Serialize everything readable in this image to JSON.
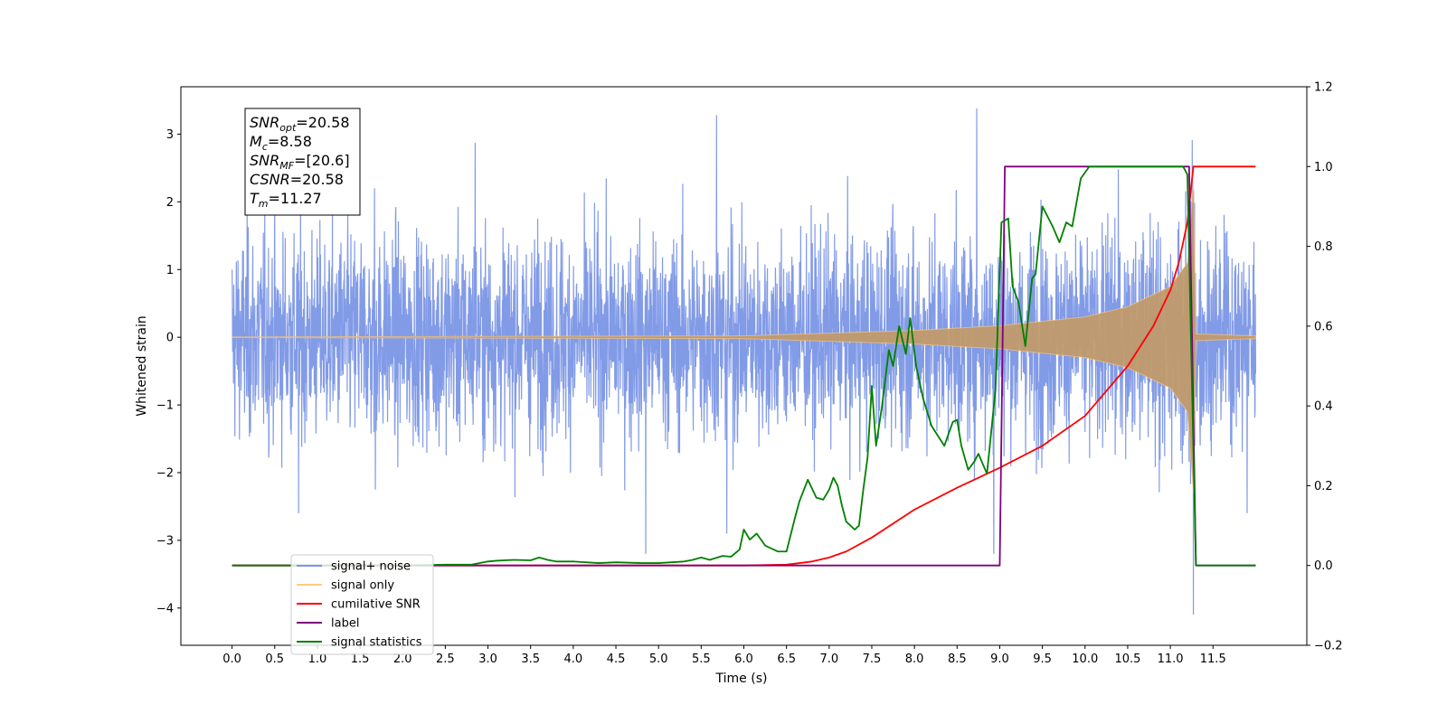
{
  "chart_data": {
    "type": "line",
    "xlabel": "Time (s)",
    "ylabel": "Whitened strain",
    "xlim": [
      -0.6,
      12.6
    ],
    "ylim_left": [
      -4.55,
      3.7
    ],
    "ylim_right": [
      -0.2,
      1.2
    ],
    "x_ticks": [
      0.0,
      0.5,
      1.0,
      1.5,
      2.0,
      2.5,
      3.0,
      3.5,
      4.0,
      4.5,
      5.0,
      5.5,
      6.0,
      6.5,
      7.0,
      7.5,
      8.0,
      8.5,
      9.0,
      9.5,
      10.0,
      10.5,
      11.0,
      11.5
    ],
    "x_tick_labels": [
      "0.0",
      "0.5",
      "1.0",
      "1.5",
      "2.0",
      "2.5",
      "3.0",
      "3.5",
      "4.0",
      "4.5",
      "5.0",
      "5.5",
      "6.0",
      "6.5",
      "7.0",
      "7.5",
      "8.0",
      "8.5",
      "9.0",
      "9.5",
      "10.0",
      "10.5",
      "11.0",
      "11.5"
    ],
    "left_ticks": [
      -4,
      -3,
      -2,
      -1,
      0,
      1,
      2,
      3
    ],
    "left_tick_labels": [
      "−4",
      "−3",
      "−2",
      "−1",
      "0",
      "1",
      "2",
      "3"
    ],
    "right_ticks": [
      -0.2,
      0.0,
      0.2,
      0.4,
      0.6,
      0.8,
      1.0,
      1.2
    ],
    "right_tick_labels": [
      "−0.2",
      "0.0",
      "0.2",
      "0.4",
      "0.6",
      "0.8",
      "1.0",
      "1.2"
    ],
    "info_box": [
      {
        "base": "SNR",
        "sub": "opt",
        "rest": "=20.58"
      },
      {
        "base": "M",
        "sub": "c",
        "rest": "=8.58"
      },
      {
        "base": "SNR",
        "sub": "MF",
        "rest": "=[20.6]"
      },
      {
        "base": "CSNR",
        "sub": "",
        "rest": "=20.58"
      },
      {
        "base": "T",
        "sub": "m",
        "rest": "=11.27"
      }
    ],
    "legend": {
      "placement": "lower-left",
      "entries": [
        {
          "label": "signal+ noise",
          "color": "#7b96e6"
        },
        {
          "label": "signal only",
          "color": "#ffcc80"
        },
        {
          "label": "cumilative SNR",
          "color": "#ff0000"
        },
        {
          "label": "label",
          "color": "#800080"
        },
        {
          "label": "signal statistics",
          "color": "#008000"
        }
      ]
    },
    "series": [
      {
        "name": "signal+ noise",
        "axis": "left",
        "color": "#7b96e6",
        "duration": 12.0,
        "noise_sigma": 0.75,
        "spikes": [
          [
            1.67,
            2.2
          ],
          [
            2.85,
            2.87
          ],
          [
            4.85,
            -3.2
          ],
          [
            5.68,
            3.28
          ],
          [
            5.8,
            -2.9
          ],
          [
            8.73,
            3.38
          ],
          [
            8.93,
            -3.2
          ],
          [
            11.27,
            -4.1
          ],
          [
            11.9,
            -2.6
          ],
          [
            0.78,
            -2.6
          ],
          [
            1.68,
            -2.25
          ]
        ]
      },
      {
        "name": "signal only",
        "axis": "left",
        "color": "#ffcc80",
        "chirp_start": 6.0,
        "merger": 11.27,
        "envelope": [
          [
            0.0,
            0.005
          ],
          [
            6.0,
            0.02
          ],
          [
            8.0,
            0.1
          ],
          [
            9.0,
            0.17
          ],
          [
            10.0,
            0.3
          ],
          [
            10.5,
            0.45
          ],
          [
            11.0,
            0.75
          ],
          [
            11.2,
            1.1
          ],
          [
            11.27,
            2.3
          ],
          [
            11.3,
            0.05
          ],
          [
            12.0,
            0.02
          ]
        ]
      },
      {
        "name": "cumilative SNR",
        "axis": "right",
        "color": "#ff0000",
        "x": [
          0.0,
          6.0,
          6.5,
          6.8,
          7.0,
          7.2,
          7.5,
          8.0,
          8.5,
          9.0,
          9.5,
          10.0,
          10.5,
          10.8,
          11.0,
          11.1,
          11.2,
          11.27,
          12.0
        ],
        "y": [
          0.0,
          0.0,
          0.002,
          0.01,
          0.02,
          0.035,
          0.07,
          0.14,
          0.195,
          0.245,
          0.3,
          0.375,
          0.5,
          0.6,
          0.69,
          0.76,
          0.86,
          1.0,
          1.0
        ]
      },
      {
        "name": "label",
        "axis": "right",
        "color": "#800080",
        "x": [
          0.0,
          9.0,
          9.06,
          11.22,
          11.3,
          12.0
        ],
        "y": [
          0.0,
          0.0,
          1.0,
          1.0,
          0.0,
          0.0
        ]
      },
      {
        "name": "signal statistics",
        "axis": "right",
        "color": "#008000",
        "x": [
          0.0,
          0.5,
          1.0,
          1.5,
          2.0,
          2.5,
          2.8,
          3.0,
          3.1,
          3.3,
          3.5,
          3.6,
          3.7,
          3.8,
          4.0,
          4.3,
          4.5,
          4.8,
          5.0,
          5.3,
          5.4,
          5.5,
          5.6,
          5.75,
          5.85,
          5.95,
          6.0,
          6.07,
          6.15,
          6.25,
          6.4,
          6.5,
          6.6,
          6.65,
          6.75,
          6.85,
          6.93,
          7.0,
          7.05,
          7.1,
          7.15,
          7.2,
          7.3,
          7.35,
          7.4,
          7.45,
          7.5,
          7.55,
          7.62,
          7.7,
          7.75,
          7.82,
          7.9,
          7.95,
          8.02,
          8.1,
          8.2,
          8.35,
          8.45,
          8.5,
          8.55,
          8.63,
          8.7,
          8.75,
          8.85,
          8.95,
          9.02,
          9.1,
          9.15,
          9.22,
          9.3,
          9.38,
          9.42,
          9.5,
          9.62,
          9.7,
          9.78,
          9.85,
          9.95,
          10.05,
          10.2,
          11.0,
          11.15,
          11.2,
          11.3,
          12.0
        ],
        "y": [
          0.0,
          0.0,
          0.0,
          0.0,
          0.0,
          0.002,
          0.002,
          0.01,
          0.012,
          0.014,
          0.013,
          0.02,
          0.014,
          0.01,
          0.01,
          0.006,
          0.008,
          0.006,
          0.006,
          0.01,
          0.014,
          0.02,
          0.014,
          0.024,
          0.022,
          0.04,
          0.09,
          0.065,
          0.08,
          0.05,
          0.035,
          0.035,
          0.12,
          0.16,
          0.215,
          0.17,
          0.165,
          0.19,
          0.22,
          0.2,
          0.15,
          0.11,
          0.09,
          0.1,
          0.19,
          0.27,
          0.45,
          0.3,
          0.4,
          0.54,
          0.5,
          0.6,
          0.53,
          0.62,
          0.5,
          0.42,
          0.35,
          0.3,
          0.36,
          0.365,
          0.3,
          0.24,
          0.26,
          0.28,
          0.23,
          0.44,
          0.86,
          0.87,
          0.7,
          0.66,
          0.55,
          0.72,
          0.73,
          0.9,
          0.85,
          0.81,
          0.86,
          0.85,
          0.97,
          1.0,
          1.0,
          1.0,
          1.0,
          0.98,
          0.0,
          0.0
        ]
      }
    ]
  }
}
